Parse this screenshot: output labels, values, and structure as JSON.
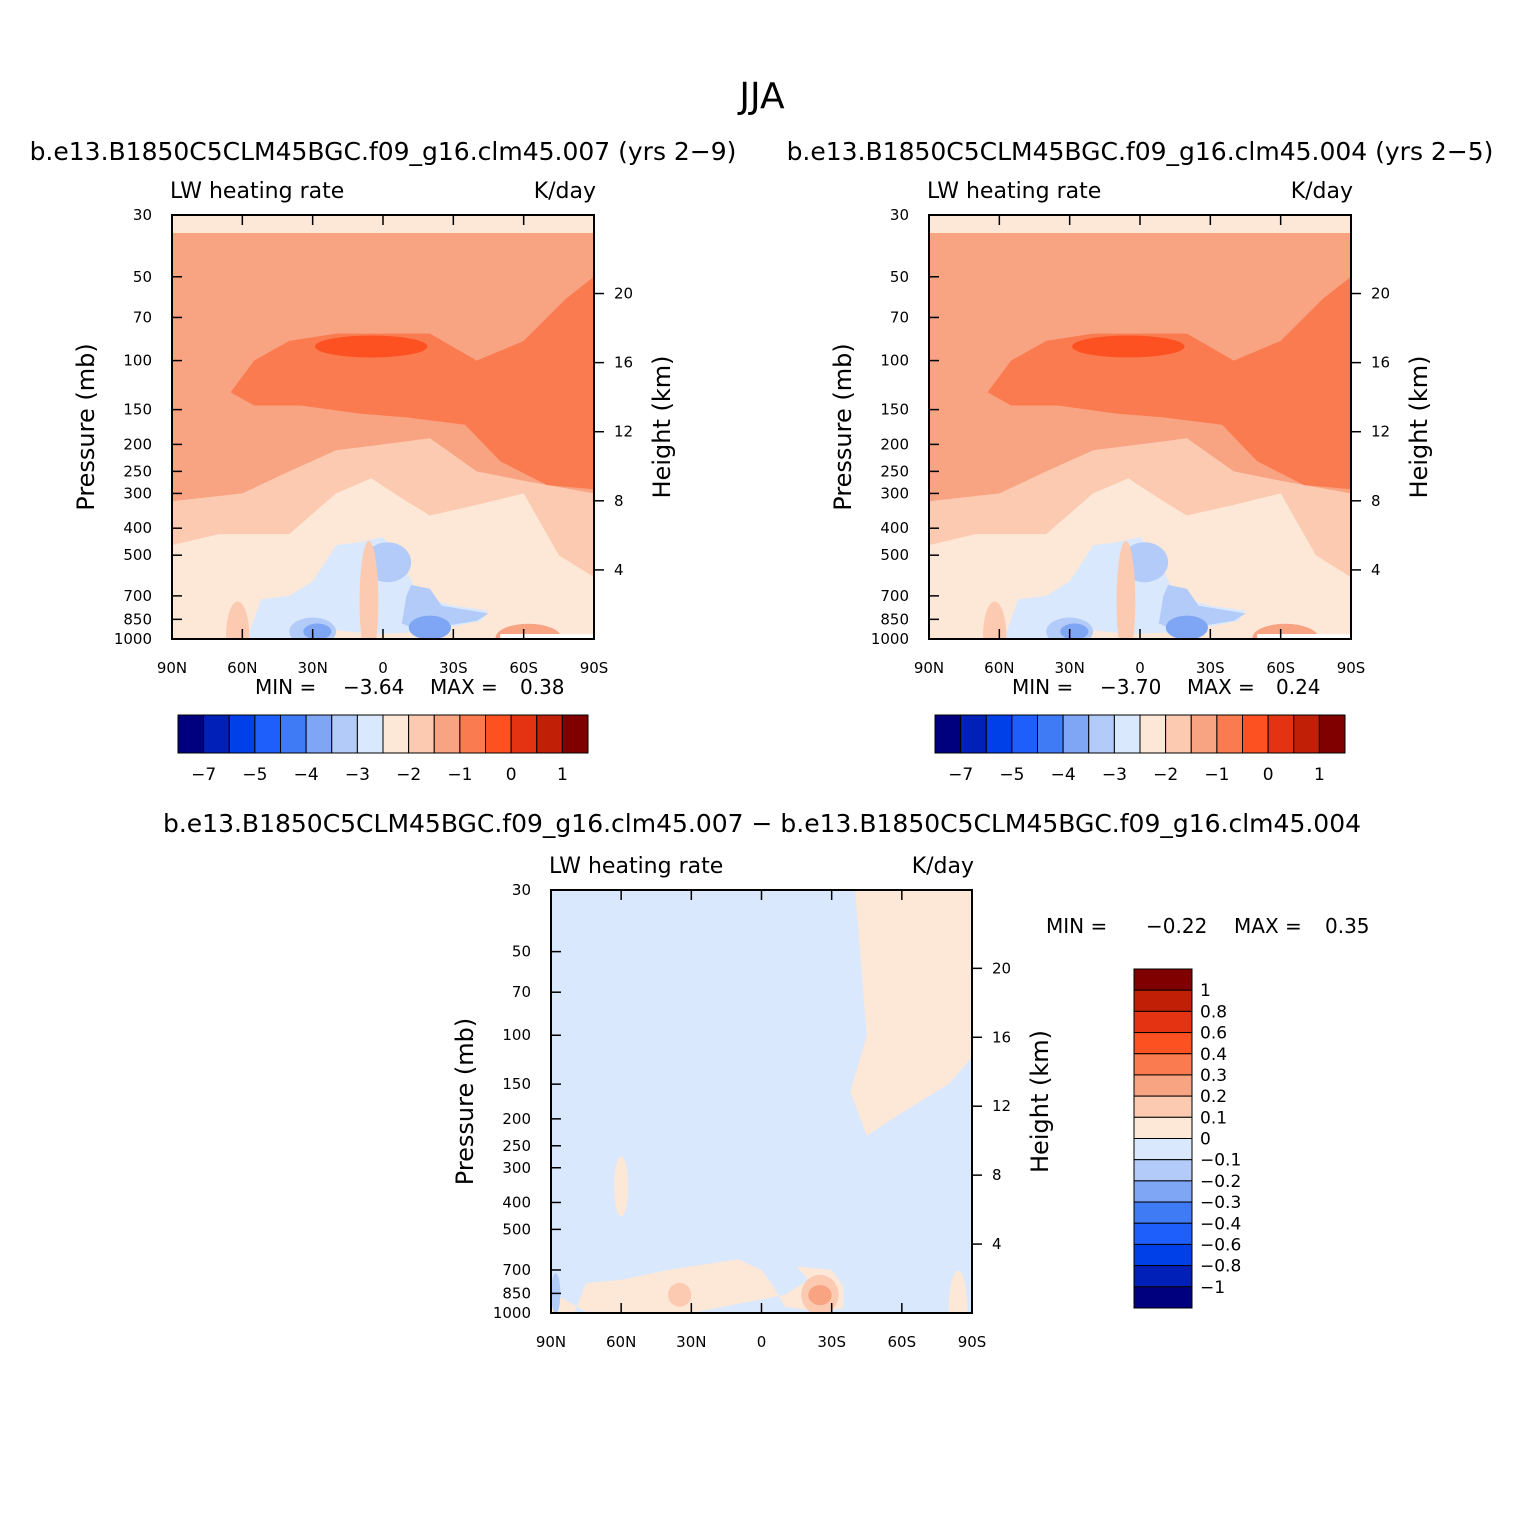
{
  "figure": {
    "title": "JJA"
  },
  "palettes": {
    "blue_red_16": [
      "#00007f",
      "#0020b8",
      "#0040e8",
      "#1e5ffb",
      "#3f7bf5",
      "#7fa5f5",
      "#b3cbf8",
      "#d9e8fc",
      "#fde8d8",
      "#fbcab1",
      "#f8a382",
      "#fa7b4f",
      "#fd5122",
      "#e43312",
      "#c11f06",
      "#800000"
    ]
  },
  "chart_data": [
    {
      "id": "panel-a",
      "type": "heatmap",
      "case_title": "b.e13.B1850C5CLM45BGC.f09_g16.clm45.007 (yrs 2-9)",
      "left_string": "LW heating rate",
      "right_string": "K/day",
      "ylabel": "Pressure (mb)",
      "ylabel_right": "Height (km)",
      "x_ticks": [
        "90N",
        "60N",
        "30N",
        "0",
        "30S",
        "60S",
        "90S"
      ],
      "x_range": [
        90,
        -90
      ],
      "y_ticks": [
        30,
        50,
        70,
        100,
        150,
        200,
        250,
        300,
        400,
        500,
        700,
        850,
        1000
      ],
      "y_range": [
        30,
        1000
      ],
      "y_scale": "log",
      "height_ticks": [
        20,
        16,
        12,
        8,
        4
      ],
      "min_label": "MIN =",
      "min_value": "-3.64",
      "max_label": "MAX =",
      "max_value": "0.38",
      "colorbar": {
        "orientation": "horizontal",
        "levels": [
          -7,
          -6,
          -5,
          -4.5,
          -4,
          -3.5,
          -3,
          -2.5,
          -2,
          -1.5,
          -1,
          -0.5,
          0,
          0.5,
          1
        ],
        "labels": [
          "-7",
          "-5",
          "-4",
          "-3",
          "-2",
          "-1",
          "0",
          "1"
        ]
      }
    },
    {
      "id": "panel-b",
      "type": "heatmap",
      "case_title": "b.e13.B1850C5CLM45BGC.f09_g16.clm45.004 (yrs 2-5)",
      "left_string": "LW heating rate",
      "right_string": "K/day",
      "ylabel": "Pressure (mb)",
      "ylabel_right": "Height (km)",
      "x_ticks": [
        "90N",
        "60N",
        "30N",
        "0",
        "30S",
        "60S",
        "90S"
      ],
      "x_range": [
        90,
        -90
      ],
      "y_ticks": [
        30,
        50,
        70,
        100,
        150,
        200,
        250,
        300,
        400,
        500,
        700,
        850,
        1000
      ],
      "y_range": [
        30,
        1000
      ],
      "y_scale": "log",
      "height_ticks": [
        20,
        16,
        12,
        8,
        4
      ],
      "min_label": "MIN =",
      "min_value": "-3.70",
      "max_label": "MAX =",
      "max_value": "0.24",
      "colorbar": {
        "orientation": "horizontal",
        "levels": [
          -7,
          -6,
          -5,
          -4.5,
          -4,
          -3.5,
          -3,
          -2.5,
          -2,
          -1.5,
          -1,
          -0.5,
          0,
          0.5,
          1
        ],
        "labels": [
          "-7",
          "-5",
          "-4",
          "-3",
          "-2",
          "-1",
          "0",
          "1"
        ]
      }
    },
    {
      "id": "panel-diff",
      "type": "heatmap",
      "case_title": "b.e13.B1850C5CLM45BGC.f09_g16.clm45.007 - b.e13.B1850C5CLM45BGC.f09_g16.clm45.004",
      "left_string": "LW heating rate",
      "right_string": "K/day",
      "ylabel": "Pressure (mb)",
      "ylabel_right": "Height (km)",
      "x_ticks": [
        "90N",
        "60N",
        "30N",
        "0",
        "30S",
        "60S",
        "90S"
      ],
      "x_range": [
        90,
        -90
      ],
      "y_ticks": [
        30,
        50,
        70,
        100,
        150,
        200,
        250,
        300,
        400,
        500,
        700,
        850,
        1000
      ],
      "y_range": [
        30,
        1000
      ],
      "y_scale": "log",
      "height_ticks": [
        20,
        16,
        12,
        8,
        4
      ],
      "min_label": "MIN =",
      "min_value": "-0.22",
      "max_label": "MAX =",
      "max_value": "0.35",
      "colorbar": {
        "orientation": "vertical",
        "levels": [
          -1,
          -0.8,
          -0.6,
          -0.4,
          -0.3,
          -0.2,
          -0.1,
          0,
          0.1,
          0.2,
          0.3,
          0.4,
          0.6,
          0.8,
          1
        ],
        "labels": [
          "1",
          "0.8",
          "0.6",
          "0.4",
          "0.3",
          "0.2",
          "0.1",
          "0",
          "-0.1",
          "-0.2",
          "-0.3",
          "-0.4",
          "-0.6",
          "-0.8",
          "-1"
        ]
      }
    }
  ]
}
